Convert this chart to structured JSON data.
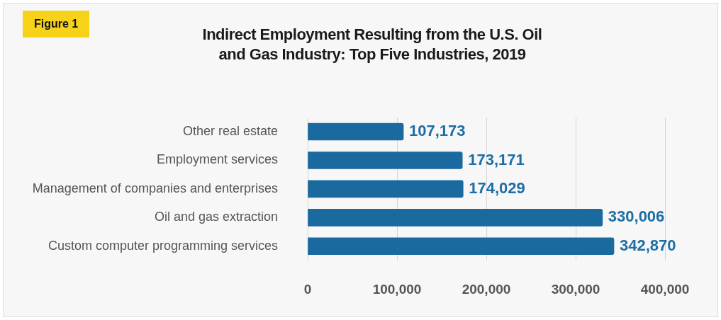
{
  "chart_data": {
    "type": "bar",
    "orientation": "horizontal",
    "title": "Indirect Employment Resulting from the U.S. Oil and Gas Industry: Top Five Industries, 2019",
    "annotations": [
      "Figure 1"
    ],
    "categories": [
      "Other real estate",
      "Employment services",
      "Management of companies and enterprises",
      "Oil and gas extraction",
      "Custom computer programming services"
    ],
    "values": [
      107173,
      173171,
      174029,
      330006,
      342870
    ],
    "value_labels": [
      "107,173",
      "173,171",
      "174,029",
      "330,006",
      "342,870"
    ],
    "color": "#1b6a9f",
    "xlim": [
      0,
      400000
    ],
    "xticks": [
      {
        "value": 0,
        "label": "0"
      },
      {
        "value": 100000,
        "label": "100,000"
      },
      {
        "value": 200000,
        "label": "200,000"
      },
      {
        "value": 300000,
        "label": "300,000"
      },
      {
        "value": 400000,
        "label": "400,000"
      }
    ],
    "grid": "x",
    "legend": false
  }
}
